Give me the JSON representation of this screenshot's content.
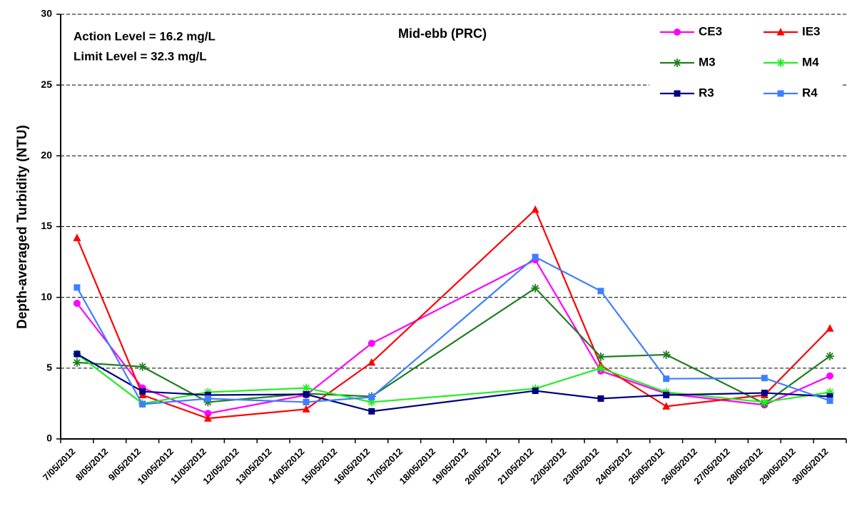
{
  "chart_data": {
    "type": "line",
    "title": "Mid-ebb (PRC)",
    "ylabel": "Depth-averaged Turbidity (NTU)",
    "annotations": [
      "Action Level = 16.2 mg/L",
      "Limit Level = 32.3 mg/L"
    ],
    "categories": [
      "7/05/2012",
      "8/05/2012",
      "9/05/2012",
      "10/05/2012",
      "11/05/2012",
      "12/05/2012",
      "13/05/2012",
      "14/05/2012",
      "15/05/2012",
      "16/05/2012",
      "17/05/2012",
      "18/05/2012",
      "19/05/2012",
      "20/05/2012",
      "21/05/2012",
      "22/05/2012",
      "23/05/2012",
      "24/05/2012",
      "25/05/2012",
      "26/05/2012",
      "27/05/2012",
      "28/05/2012",
      "29/05/2012",
      "30/05/2012"
    ],
    "series": [
      {
        "name": "CE3",
        "color": "#ff00ff",
        "marker": "circle",
        "values": [
          9.58,
          null,
          3.6,
          null,
          1.8,
          null,
          null,
          3.1,
          null,
          6.75,
          null,
          null,
          null,
          null,
          12.65,
          null,
          4.8,
          null,
          3.2,
          null,
          null,
          2.4,
          null,
          4.45
        ]
      },
      {
        "name": "IE3",
        "color": "#ff0000",
        "marker": "triangle",
        "values": [
          14.2,
          null,
          3.1,
          null,
          1.45,
          null,
          null,
          2.1,
          null,
          5.4,
          null,
          null,
          null,
          null,
          16.2,
          null,
          5.2,
          null,
          2.3,
          null,
          null,
          3.1,
          null,
          7.8
        ]
      },
      {
        "name": "M3",
        "color": "#1f7f1f",
        "marker": "star",
        "values": [
          5.4,
          null,
          5.1,
          null,
          2.6,
          null,
          null,
          3.2,
          null,
          3.0,
          null,
          null,
          null,
          null,
          10.65,
          null,
          5.8,
          null,
          5.95,
          null,
          null,
          2.5,
          null,
          5.85
        ]
      },
      {
        "name": "M4",
        "color": "#22ee22",
        "marker": "star",
        "values": [
          6.0,
          null,
          2.5,
          null,
          3.3,
          null,
          null,
          3.6,
          null,
          2.6,
          null,
          null,
          null,
          null,
          3.55,
          null,
          5.0,
          null,
          3.3,
          null,
          null,
          2.6,
          null,
          3.3
        ]
      },
      {
        "name": "R3",
        "color": "#000080",
        "marker": "square",
        "values": [
          6.0,
          null,
          3.35,
          null,
          3.1,
          null,
          null,
          3.15,
          null,
          1.95,
          null,
          null,
          null,
          null,
          3.4,
          null,
          2.85,
          null,
          3.1,
          null,
          null,
          3.25,
          null,
          3.0
        ]
      },
      {
        "name": "R4",
        "color": "#3f7fff",
        "marker": "square",
        "values": [
          10.7,
          null,
          2.45,
          null,
          2.85,
          null,
          null,
          2.6,
          null,
          2.95,
          null,
          null,
          null,
          null,
          12.85,
          null,
          10.45,
          null,
          4.25,
          null,
          null,
          4.3,
          null,
          2.7
        ]
      }
    ],
    "connect_gaps": true,
    "ylim": [
      0,
      30
    ],
    "yticks": [
      0,
      5,
      10,
      15,
      20,
      25,
      30
    ],
    "grid": true
  }
}
